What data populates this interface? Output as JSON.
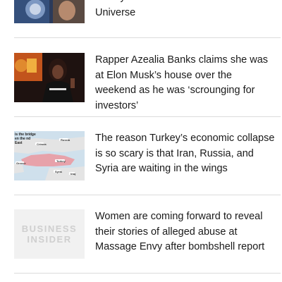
{
  "top_item": {
    "headline": "history of the Marvel Cinematic Universe"
  },
  "items": [
    {
      "headline": "Rapper Azealia Banks claims she was at Elon Musk’s house over the weekend as he was ‘scrounging for investors’",
      "thumb_desc": "azealia-banks-photo"
    },
    {
      "headline": "The reason Turkey’s economic collapse is so scary is that Iran, Russia, and Syria are waiting in the wings",
      "map_caption": "is the bridge en the nd East",
      "map_labels": [
        "Russia",
        "Crimea",
        "Turkey",
        "Greece",
        "Syria",
        "Iraq"
      ]
    },
    {
      "headline": "Women are coming forward to reveal their stories of alleged abuse at Massage Envy after bombshell report",
      "logo_line1": "BUSINESS",
      "logo_line2": "INSIDER"
    }
  ],
  "colors": {
    "divider": "#dcdcdc",
    "text": "#1a1a1a",
    "map_sea": "#cfe0ec",
    "map_turkey": "#e7a2aa"
  }
}
